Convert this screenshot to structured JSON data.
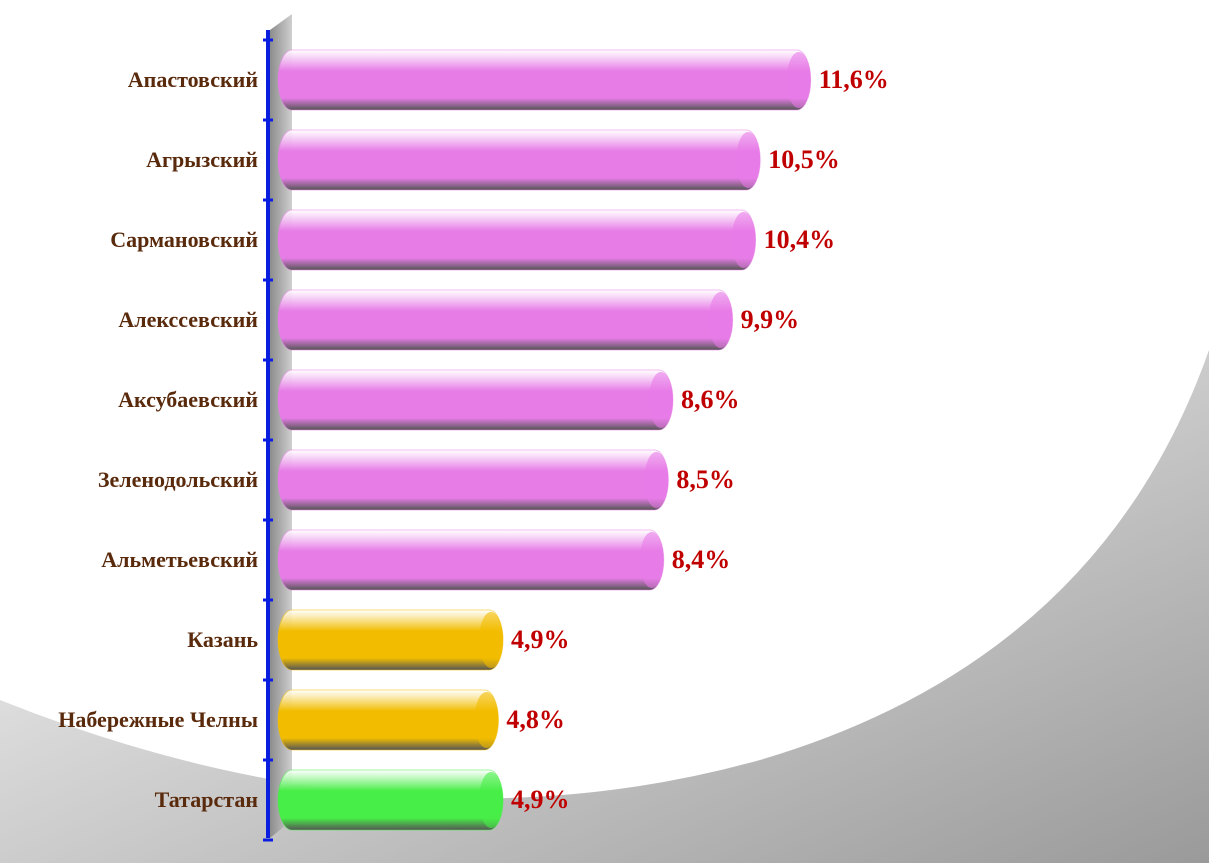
{
  "chart_data": {
    "type": "barh",
    "categories": [
      "Апастовский",
      "Агрызский",
      "Сармановский",
      "Алекссевский",
      "Аксубаевский",
      "Зеленодольский",
      "Альметьевский",
      "Казань",
      "Набережные Челны",
      "Татарстан"
    ],
    "values": [
      11.6,
      10.5,
      10.4,
      9.9,
      8.6,
      8.5,
      8.4,
      4.9,
      4.8,
      4.9
    ],
    "value_labels": [
      "11,6%",
      "10,5%",
      "10,4%",
      "9,9%",
      "8,6%",
      "8,5%",
      "8,4%",
      "4,9%",
      "4,8%",
      "4,9%"
    ],
    "colors": [
      "#e77ce7",
      "#e77ce7",
      "#e77ce7",
      "#e77ce7",
      "#e77ce7",
      "#e77ce7",
      "#e77ce7",
      "#f2bd00",
      "#f2bd00",
      "#47ee47"
    ],
    "xlim": [
      0,
      13
    ]
  }
}
